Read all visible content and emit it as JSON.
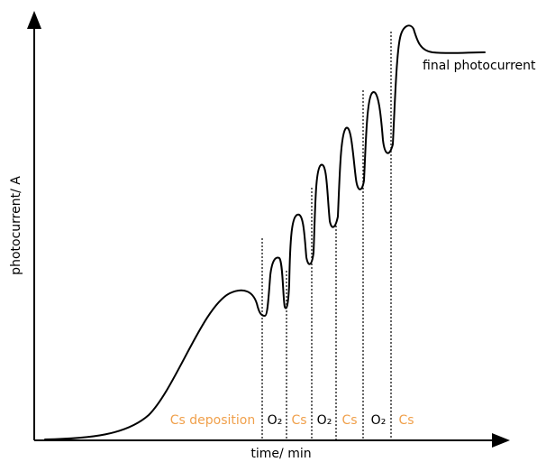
{
  "chart_data": {
    "type": "line",
    "xlabel": "time/ min",
    "ylabel": "photocurrent/ A",
    "annotation_final": "final photocurrent",
    "colors": {
      "curve": "#000000",
      "axis": "#000000",
      "cs_label": "#f0a04b",
      "o2_label": "#000000"
    },
    "phases": [
      {
        "label": "Cs deposition",
        "kind": "Cs"
      },
      {
        "label": "O₂",
        "kind": "O2"
      },
      {
        "label": "Cs",
        "kind": "Cs"
      },
      {
        "label": "O₂",
        "kind": "O2"
      },
      {
        "label": "Cs",
        "kind": "Cs"
      },
      {
        "label": "O₂",
        "kind": "O2"
      },
      {
        "label": "Cs",
        "kind": "Cs"
      }
    ]
  }
}
